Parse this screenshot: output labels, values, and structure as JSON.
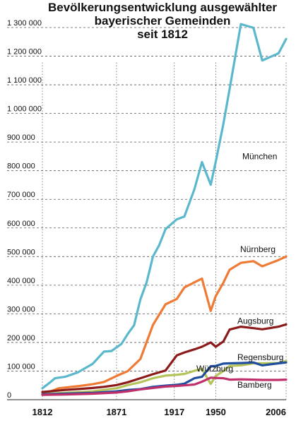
{
  "chart_data": {
    "type": "line",
    "title_lines": [
      "Bevölkerungsentwicklung ausgewählter",
      "bayerischer Gemeinden",
      "seit 1812"
    ],
    "xlabel": "",
    "ylabel": "",
    "xlim": [
      1812,
      2006
    ],
    "ylim": [
      0,
      1300000
    ],
    "x_ticks": [
      1812,
      1871,
      1917,
      1950,
      2006
    ],
    "x_tick_labels": [
      "1812",
      "1871",
      "1917",
      "1950",
      "2006"
    ],
    "y_ticks": [
      0,
      100000,
      200000,
      300000,
      400000,
      500000,
      600000,
      700000,
      800000,
      900000,
      1000000,
      1100000,
      1200000,
      1300000
    ],
    "y_tick_labels": [
      "0",
      "100 000",
      "200 000",
      "300 000",
      "400 000",
      "500 000",
      "600 000",
      "700 000",
      "800 000",
      "900 000",
      "1 000 000",
      "1 100 000",
      "1 200 000",
      "1 300 000"
    ],
    "grid": {
      "horizontal": "dashed",
      "vertical": "dotted-at-x-ticks"
    },
    "series": [
      {
        "name": "München",
        "color": "#5bb8cc",
        "x": [
          1812,
          1818,
          1822,
          1830,
          1840,
          1852,
          1861,
          1867,
          1875,
          1880,
          1885,
          1890,
          1895,
          1900,
          1905,
          1910,
          1919,
          1925,
          1933,
          1939,
          1946,
          1950,
          1956,
          1961,
          1970,
          1980,
          1987,
          2000,
          2006
        ],
        "y": [
          40000,
          60000,
          75000,
          80000,
          95000,
          125000,
          168000,
          170000,
          195000,
          230000,
          260000,
          350000,
          410000,
          500000,
          540000,
          596000,
          630000,
          640000,
          735000,
          830000,
          751000,
          831000,
          962000,
          1085000,
          1312000,
          1299000,
          1185000,
          1210000,
          1260000
        ]
      },
      {
        "name": "Nürnberg",
        "color": "#ee7a34",
        "x": [
          1812,
          1818,
          1825,
          1840,
          1852,
          1861,
          1871,
          1880,
          1890,
          1900,
          1910,
          1919,
          1925,
          1933,
          1939,
          1946,
          1950,
          1956,
          1961,
          1970,
          1980,
          1987,
          2000,
          2006
        ],
        "y": [
          26000,
          28000,
          40000,
          47000,
          54000,
          62000,
          83000,
          100000,
          142000,
          261000,
          333000,
          352000,
          392000,
          410000,
          423000,
          310000,
          362000,
          408000,
          454000,
          478000,
          484000,
          466000,
          488000,
          500000
        ]
      },
      {
        "name": "Augsburg",
        "color": "#8b1a1a",
        "x": [
          1812,
          1820,
          1830,
          1840,
          1852,
          1861,
          1871,
          1880,
          1890,
          1900,
          1910,
          1919,
          1925,
          1933,
          1939,
          1946,
          1950,
          1956,
          1961,
          1970,
          1980,
          1987,
          2000,
          2006
        ],
        "y": [
          27000,
          30000,
          34000,
          37000,
          41000,
          45000,
          51000,
          61000,
          75000,
          89000,
          102000,
          155000,
          165000,
          176000,
          185000,
          200000,
          185000,
          203000,
          245000,
          255000,
          250000,
          246000,
          255000,
          263000
        ]
      },
      {
        "name": "Würzburg",
        "color": "#b5c45a",
        "x": [
          1812,
          1830,
          1852,
          1871,
          1880,
          1890,
          1900,
          1910,
          1919,
          1925,
          1933,
          1939,
          1946,
          1950,
          1956,
          1961,
          1970,
          1980,
          1987,
          2000,
          2006
        ],
        "y": [
          20000,
          24000,
          29000,
          40000,
          51000,
          61000,
          75000,
          84000,
          87000,
          90000,
          101000,
          108000,
          55000,
          83000,
          100000,
          118000,
          120000,
          127000,
          127000,
          128000,
          135000
        ]
      },
      {
        "name": "Regensburg",
        "color": "#1f4e9e",
        "x": [
          1812,
          1830,
          1852,
          1871,
          1880,
          1890,
          1900,
          1910,
          1919,
          1925,
          1933,
          1939,
          1946,
          1950,
          1956,
          1961,
          1970,
          1980,
          1987,
          2000,
          2006
        ],
        "y": [
          19000,
          21000,
          24000,
          29000,
          34000,
          37000,
          45000,
          49000,
          52000,
          56000,
          75000,
          80000,
          117000,
          118000,
          126000,
          127000,
          128000,
          130000,
          120000,
          127000,
          130000
        ]
      },
      {
        "name": "Bamberg",
        "color": "#c0306a",
        "x": [
          1812,
          1830,
          1852,
          1871,
          1880,
          1890,
          1900,
          1910,
          1919,
          1925,
          1933,
          1939,
          1946,
          1950,
          1956,
          1961,
          1970,
          1980,
          1987,
          2000,
          2006
        ],
        "y": [
          17000,
          18000,
          21000,
          25000,
          29000,
          36000,
          41000,
          46000,
          48000,
          50000,
          53000,
          63000,
          77000,
          76000,
          75000,
          70000,
          71000,
          70000,
          69000,
          69000,
          70000
        ]
      }
    ]
  }
}
